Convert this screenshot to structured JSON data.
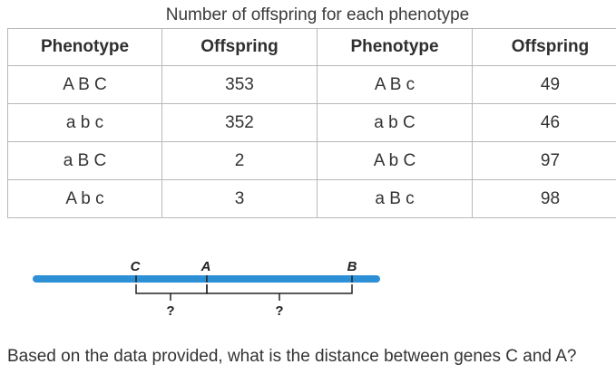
{
  "table": {
    "caption": "Number of offspring for each phenotype",
    "headers": [
      "Phenotype",
      "Offspring",
      "Phenotype",
      "Offspring"
    ],
    "rows": [
      [
        "A B C",
        "353",
        "A B c",
        "49"
      ],
      [
        "a b c",
        "352",
        "a b C",
        "46"
      ],
      [
        "a B C",
        "2",
        "A b C",
        "97"
      ],
      [
        "A b c",
        "3",
        "a B c",
        "98"
      ]
    ]
  },
  "diagram": {
    "chromosome_color": "#2d8fd6",
    "gene_labels": [
      "C",
      "A",
      "B"
    ],
    "gap_labels": [
      "?",
      "?"
    ]
  },
  "question": "Based on the data provided, what is the distance between genes C and A?"
}
